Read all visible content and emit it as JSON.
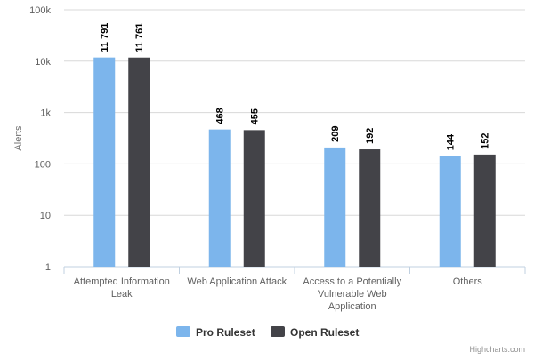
{
  "chart_data": {
    "type": "bar",
    "categories": [
      [
        "Attempted Information",
        "Leak"
      ],
      [
        "Web Application Attack"
      ],
      [
        "Access to a Potentially",
        "Vulnerable Web",
        "Application"
      ],
      [
        "Others"
      ]
    ],
    "series": [
      {
        "name": "Pro Ruleset",
        "color": "#7cb5ec",
        "values": [
          11791,
          468,
          209,
          144
        ],
        "labels": [
          "11 791",
          "468",
          "209",
          "144"
        ]
      },
      {
        "name": "Open Ruleset",
        "color": "#434348",
        "values": [
          11761,
          455,
          192,
          152
        ],
        "labels": [
          "11 761",
          "455",
          "192",
          "152"
        ]
      }
    ],
    "title": "",
    "xlabel": "",
    "ylabel": "Alerts",
    "yscale": "log",
    "ylim": [
      1,
      100000
    ],
    "yticks": [
      {
        "value": 1,
        "label": "1"
      },
      {
        "value": 10,
        "label": "10"
      },
      {
        "value": 100,
        "label": "100"
      },
      {
        "value": 1000,
        "label": "1k"
      },
      {
        "value": 10000,
        "label": "10k"
      },
      {
        "value": 100000,
        "label": "100k"
      }
    ],
    "grid": true,
    "legend_position": "bottom-center",
    "credits": "Highcharts.com"
  }
}
